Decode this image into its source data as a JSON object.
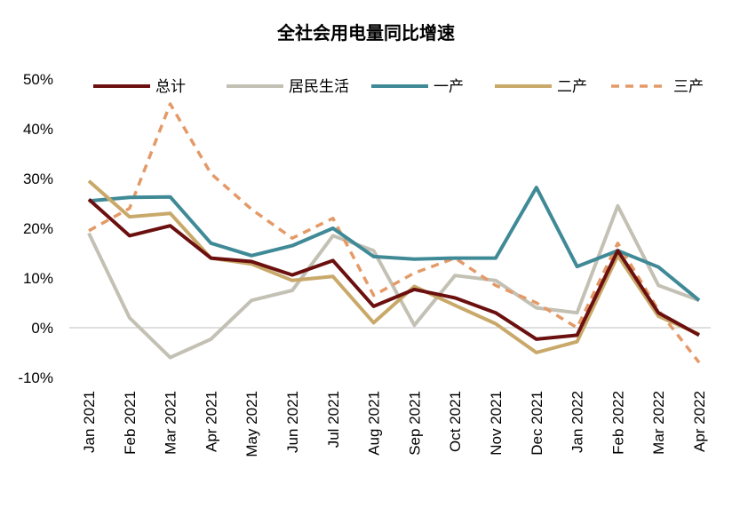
{
  "chart_data": {
    "type": "line",
    "title": "全社会用电量同比增速",
    "xlabel": "",
    "ylabel": "",
    "ylim": [
      -10,
      50
    ],
    "y_ticks": [
      -10,
      0,
      10,
      20,
      30,
      40,
      50
    ],
    "y_tick_labels": [
      "-10%",
      "0%",
      "10%",
      "20%",
      "30%",
      "40%",
      "50%"
    ],
    "legend_position": "top",
    "categories": [
      "Jan 2021",
      "Feb 2021",
      "Mar 2021",
      "Apr 2021",
      "May 2021",
      "Jun 2021",
      "Jul 2021",
      "Aug 2021",
      "Sep 2021",
      "Oct 2021",
      "Nov 2021",
      "Dec 2021",
      "Jan 2022",
      "Feb 2022",
      "Mar 2022",
      "Apr 2022"
    ],
    "series": [
      {
        "name": "总计",
        "color": "#6b0f0f",
        "dash": "solid",
        "values": [
          25.8,
          18.5,
          20.5,
          14.0,
          13.3,
          10.6,
          13.5,
          4.3,
          7.7,
          6.0,
          3.0,
          -2.3,
          -1.5,
          15.5,
          3.0,
          -1.5
        ]
      },
      {
        "name": "居民生活",
        "color": "#c3c0b4",
        "dash": "solid",
        "values": [
          19.0,
          2.0,
          -6.0,
          -2.3,
          5.5,
          7.5,
          18.5,
          15.5,
          0.5,
          10.5,
          9.5,
          4.0,
          3.0,
          24.5,
          8.5,
          5.5
        ]
      },
      {
        "name": "一产",
        "color": "#3f8a96",
        "dash": "solid",
        "values": [
          25.5,
          26.2,
          26.3,
          17.0,
          14.5,
          16.5,
          20.0,
          14.3,
          13.8,
          14.0,
          14.0,
          28.2,
          12.3,
          15.5,
          12.2,
          5.5
        ]
      },
      {
        "name": "二产",
        "color": "#c9a96a",
        "dash": "solid",
        "values": [
          29.5,
          22.3,
          23.0,
          14.0,
          12.8,
          9.5,
          10.3,
          1.0,
          8.3,
          4.5,
          0.8,
          -5.0,
          -2.8,
          14.5,
          2.3,
          -1.3
        ]
      },
      {
        "name": "三产",
        "color": "#e49a68",
        "dash": "dash",
        "values": [
          19.5,
          24.0,
          45.0,
          31.0,
          23.8,
          18.0,
          22.0,
          6.5,
          11.0,
          14.0,
          8.5,
          5.0,
          0.0,
          17.0,
          3.5,
          -7.0
        ]
      }
    ]
  }
}
